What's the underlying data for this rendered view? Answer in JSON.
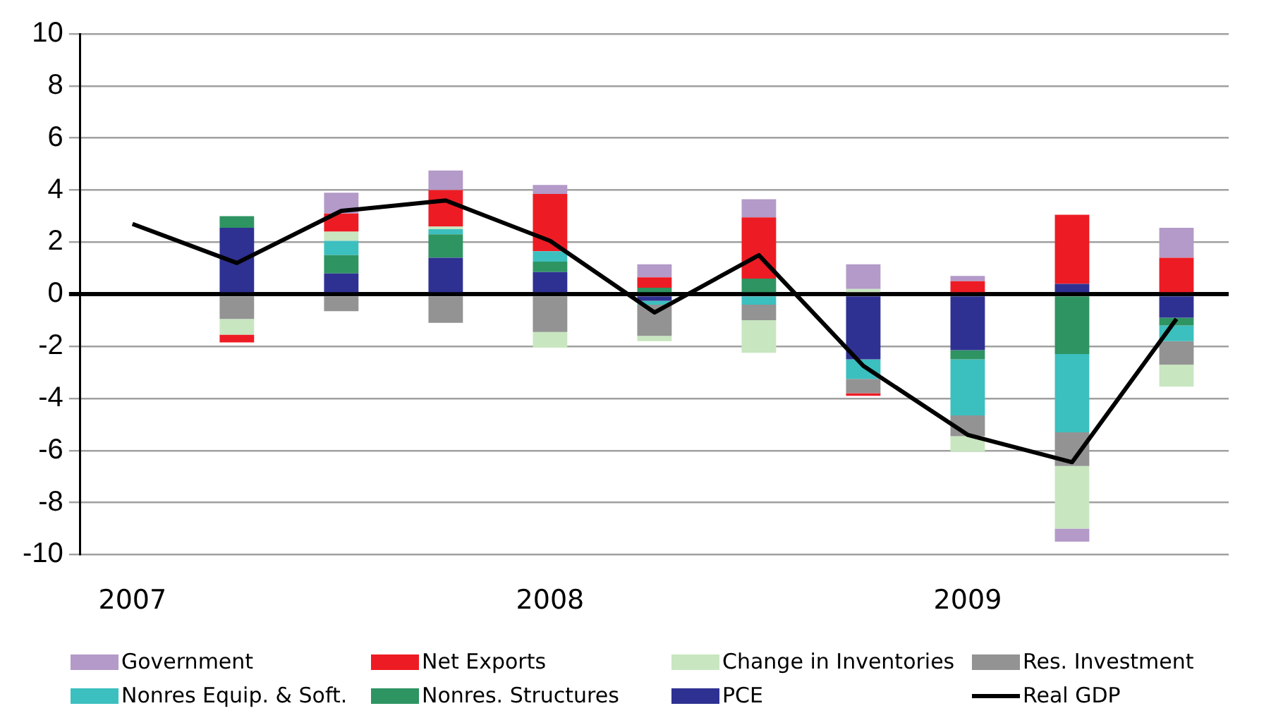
{
  "chart_data": {
    "type": "bar",
    "stacked": true,
    "categories": [
      "2007",
      null,
      null,
      null,
      "2008",
      null,
      null,
      null,
      "2009",
      null,
      null
    ],
    "series": [
      {
        "name": "PCE",
        "color": "#2e3192",
        "values": [
          null,
          2.55,
          0.8,
          1.4,
          0.85,
          -0.25,
          0,
          -2.5,
          -2.15,
          0.4,
          -0.9
        ]
      },
      {
        "name": "Nonres. Structures",
        "color": "#2e9462",
        "values": [
          null,
          0.45,
          0.7,
          0.9,
          0.4,
          0.25,
          0.6,
          0,
          -0.35,
          -2.3,
          -0.3
        ]
      },
      {
        "name": "Nonres Equip. & Soft.",
        "color": "#3cbfbf",
        "values": [
          null,
          0,
          0.55,
          0.2,
          0.4,
          -0.15,
          -0.4,
          -0.75,
          -2.15,
          -3.0,
          -0.6
        ]
      },
      {
        "name": "Res. Investment",
        "color": "#939393",
        "values": [
          null,
          -0.95,
          -0.65,
          -1.1,
          -1.45,
          -1.2,
          -0.6,
          -0.55,
          -0.8,
          -1.3,
          -0.9
        ]
      },
      {
        "name": "Change in Inventories",
        "color": "#c8e6c0",
        "values": [
          null,
          -0.6,
          0.35,
          0.1,
          -0.6,
          -0.2,
          -1.25,
          0.2,
          -0.6,
          -2.4,
          -0.85
        ]
      },
      {
        "name": "Net Exports",
        "color": "#ed1c24",
        "values": [
          null,
          -0.3,
          0.7,
          1.4,
          2.2,
          0.4,
          2.35,
          -0.1,
          0.5,
          2.65,
          1.4
        ]
      },
      {
        "name": "Government",
        "color": "#b39ac8",
        "values": [
          null,
          0,
          0.8,
          0.75,
          0.35,
          0.5,
          0.7,
          0.95,
          0.2,
          -0.5,
          1.15
        ]
      },
      {
        "name": "Real GDP",
        "type": "line",
        "color": "#000000",
        "marker": "none",
        "line_style": "solid",
        "values": [
          2.7,
          1.2,
          3.2,
          3.6,
          2.05,
          -0.7,
          1.5,
          -2.75,
          -5.4,
          -6.45,
          -0.95
        ]
      }
    ],
    "ylim": [
      -10,
      10
    ],
    "yticks": [
      -10,
      -8,
      -6,
      -4,
      -2,
      0,
      2,
      4,
      6,
      8,
      10
    ],
    "grid": "y",
    "legend": "bottom"
  }
}
